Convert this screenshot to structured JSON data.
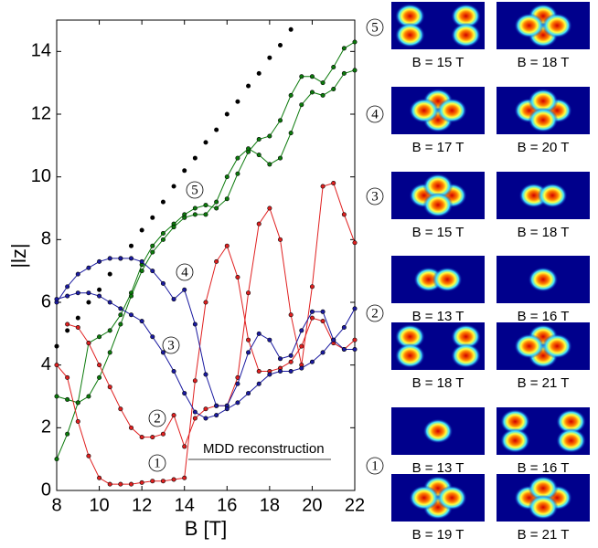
{
  "chart_data": {
    "type": "line",
    "xlabel": "B  [T]",
    "ylabel": "|lz|",
    "xlim": [
      8,
      22
    ],
    "ylim": [
      0,
      15
    ],
    "xticks": [
      8,
      10,
      12,
      14,
      16,
      18,
      20,
      22
    ],
    "yticks": [
      0,
      2,
      4,
      6,
      8,
      10,
      12,
      14
    ],
    "x": [
      8,
      8.5,
      9,
      9.5,
      10,
      10.5,
      11,
      11.5,
      12,
      12.5,
      13,
      13.5,
      14,
      14.5,
      15,
      15.5,
      16,
      16.5,
      17,
      17.5,
      18,
      18.5,
      19,
      19.5,
      20,
      20.5,
      21,
      21.5,
      22
    ],
    "series": [
      {
        "color": "#000000",
        "line": false,
        "values": [
          4.6,
          5.1,
          5.5,
          6.0,
          6.4,
          6.9,
          7.4,
          7.8,
          8.3,
          8.7,
          9.2,
          9.7,
          10.2,
          10.6,
          11.1,
          11.5,
          12.0,
          12.4,
          12.9,
          13.3,
          13.8,
          14.2,
          14.7,
          null,
          null,
          null,
          null,
          null,
          null
        ]
      },
      {
        "color": "#0b7a0b",
        "line": true,
        "values": [
          1.0,
          1.8,
          2.8,
          4.7,
          4.9,
          5.1,
          5.6,
          6.3,
          7.2,
          7.8,
          8.2,
          8.5,
          8.8,
          9.0,
          9.1,
          9.0,
          9.3,
          10.1,
          10.8,
          11.2,
          11.3,
          11.8,
          12.6,
          13.2,
          13.2,
          13.0,
          13.5,
          14.1,
          14.3
        ]
      },
      {
        "color": "#0b7a0b",
        "line": true,
        "values": [
          3.0,
          2.9,
          2.8,
          3.0,
          3.6,
          4.4,
          5.3,
          6.2,
          7.0,
          7.6,
          8.0,
          8.4,
          8.7,
          8.8,
          8.8,
          9.2,
          10.0,
          10.6,
          10.9,
          10.7,
          10.4,
          10.6,
          11.4,
          12.3,
          12.7,
          12.6,
          12.8,
          13.3,
          13.4
        ]
      },
      {
        "color": "#e02020",
        "line": true,
        "values": [
          4.0,
          3.6,
          2.2,
          1.1,
          0.4,
          0.2,
          0.2,
          0.2,
          0.25,
          0.3,
          0.3,
          0.35,
          0.4,
          3.5,
          6.0,
          7.3,
          7.8,
          6.8,
          4.8,
          3.8,
          3.8,
          3.9,
          4.1,
          4.6,
          5.5,
          5.4,
          4.7,
          4.5,
          4.8
        ]
      },
      {
        "color": "#e02020",
        "line": true,
        "values": [
          null,
          5.3,
          5.2,
          4.7,
          4.0,
          3.3,
          2.6,
          2.0,
          1.7,
          1.7,
          1.8,
          2.4,
          1.4,
          2.3,
          2.6,
          2.7,
          2.7,
          3.6,
          6.3,
          8.5,
          9.0,
          8.0,
          5.6,
          4.0,
          6.5,
          9.7,
          9.8,
          8.8,
          7.9
        ]
      },
      {
        "color": "#1a1aa0",
        "line": true,
        "values": [
          6.0,
          6.5,
          6.9,
          7.1,
          7.3,
          7.4,
          7.4,
          7.4,
          7.3,
          7.0,
          6.6,
          6.1,
          6.4,
          5.3,
          3.7,
          2.7,
          2.7,
          3.4,
          4.4,
          5.0,
          4.8,
          4.2,
          4.3,
          5.1,
          5.7,
          5.7,
          4.8,
          4.5,
          4.5
        ]
      },
      {
        "color": "#1a1aa0",
        "line": true,
        "values": [
          6.1,
          6.2,
          6.3,
          6.3,
          6.2,
          6.0,
          5.8,
          5.6,
          5.4,
          4.9,
          4.4,
          3.8,
          3.1,
          2.5,
          2.3,
          2.4,
          2.6,
          2.8,
          3.1,
          3.4,
          3.7,
          3.8,
          3.8,
          3.9,
          4.1,
          4.4,
          4.8,
          5.2,
          5.8
        ]
      }
    ],
    "annotations": [
      "5",
      "4",
      "3",
      "2",
      "1",
      "MDD reconstruction"
    ]
  },
  "density_panels": [
    {
      "label": "5",
      "images": [
        "B = 15 T",
        "B = 18 T"
      ]
    },
    {
      "label": "4",
      "images": [
        "B = 17 T",
        "B = 20 T"
      ]
    },
    {
      "label": "3",
      "images": [
        "B = 15 T",
        "B = 18 T"
      ]
    },
    {
      "label": "2",
      "images": [
        "B = 13 T",
        "B = 16 T",
        "B = 18 T",
        "B = 21 T"
      ]
    },
    {
      "label": "1",
      "images": [
        "B = 13 T",
        "B = 16 T",
        "B = 19 T",
        "B = 21 T"
      ]
    }
  ]
}
